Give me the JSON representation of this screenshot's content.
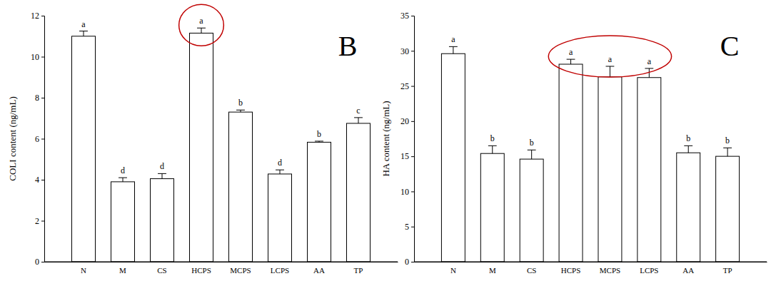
{
  "chart_data": [
    {
      "type": "bar",
      "title": "B",
      "y_label": "COLI content (ng/mL)",
      "color": "#ffffff",
      "categories": [
        "N",
        "M",
        "CS",
        "HCPS",
        "MCPS",
        "LCPS",
        "AA",
        "TP"
      ],
      "values": [
        11.0,
        3.9,
        4.05,
        11.15,
        7.3,
        4.28,
        5.83,
        6.75
      ],
      "errors": [
        0.25,
        0.2,
        0.25,
        0.25,
        0.1,
        0.2,
        0.05,
        0.28
      ],
      "annotations": [
        "a",
        "d",
        "d",
        "a",
        "b",
        "d",
        "b",
        "c"
      ],
      "ylim": [
        0,
        12
      ],
      "yticks": [
        0,
        2,
        4,
        6,
        8,
        10,
        12
      ],
      "grid": false
    },
    {
      "type": "bar",
      "title": "C",
      "y_label": "HA content (ng/mL)",
      "color": "#ffffff",
      "categories": [
        "N",
        "M",
        "CS",
        "HCPS",
        "MCPS",
        "LCPS",
        "AA",
        "TP"
      ],
      "values": [
        29.6,
        15.4,
        14.6,
        28.1,
        26.3,
        26.2,
        15.5,
        15.0
      ],
      "errors": [
        1.0,
        1.1,
        1.3,
        0.7,
        1.5,
        1.3,
        1.0,
        1.2
      ],
      "annotations": [
        "a",
        "b",
        "b",
        "a",
        "a",
        "a",
        "b",
        "b"
      ],
      "ylim": [
        0,
        35
      ],
      "yticks": [
        0,
        5,
        10,
        15,
        20,
        25,
        30,
        35
      ],
      "grid": false
    }
  ]
}
